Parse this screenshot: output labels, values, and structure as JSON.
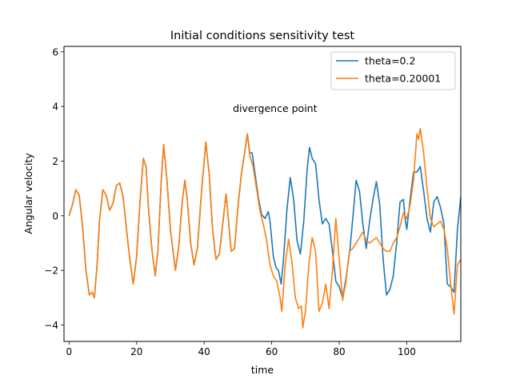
{
  "chart_data": {
    "type": "line",
    "title": "Initial conditions sensitivity test",
    "xlabel": "time",
    "ylabel": "Angular velocity",
    "xlim": [
      -1.5,
      116
    ],
    "ylim": [
      -4.6,
      6.2
    ],
    "xticks": [
      0,
      20,
      40,
      60,
      80,
      100
    ],
    "yticks": [
      -4,
      -2,
      0,
      2,
      4,
      6
    ],
    "xtick_labels": [
      "0",
      "20",
      "40",
      "60",
      "80",
      "100"
    ],
    "ytick_labels": [
      "−4",
      "−2",
      "0",
      "2",
      "4",
      "6"
    ],
    "grid": false,
    "legend_position": "top-right",
    "annotation": {
      "text": "divergence point",
      "x": 61,
      "y": 3.8
    },
    "series": [
      {
        "name": "theta=0.2",
        "color": "#1f77b4",
        "points": [
          [
            0,
            0
          ],
          [
            1,
            0.4
          ],
          [
            2,
            0.95
          ],
          [
            3,
            0.75
          ],
          [
            4,
            -0.4
          ],
          [
            5,
            -2.0
          ],
          [
            6,
            -2.9
          ],
          [
            6.8,
            -2.8
          ],
          [
            7.5,
            -3.0
          ],
          [
            8.3,
            -1.8
          ],
          [
            9,
            -0.2
          ],
          [
            10,
            0.95
          ],
          [
            11,
            0.75
          ],
          [
            12,
            0.2
          ],
          [
            13,
            0.45
          ],
          [
            14,
            1.1
          ],
          [
            15,
            1.2
          ],
          [
            16,
            0.7
          ],
          [
            17,
            -0.5
          ],
          [
            18,
            -1.6
          ],
          [
            19,
            -2.5
          ],
          [
            20,
            -1.5
          ],
          [
            21,
            0.5
          ],
          [
            22,
            2.1
          ],
          [
            22.8,
            1.8
          ],
          [
            23.5,
            0.3
          ],
          [
            24.5,
            -1.2
          ],
          [
            25.5,
            -2.2
          ],
          [
            26.3,
            -1.3
          ],
          [
            27.3,
            1.3
          ],
          [
            28,
            2.6
          ],
          [
            29,
            1.3
          ],
          [
            30,
            -0.5
          ],
          [
            31.5,
            -2.0
          ],
          [
            32.5,
            -1.1
          ],
          [
            33.5,
            0.5
          ],
          [
            34.3,
            1.3
          ],
          [
            35,
            0.6
          ],
          [
            36,
            -1.0
          ],
          [
            37,
            -1.8
          ],
          [
            38,
            -1.2
          ],
          [
            39.3,
            1.0
          ],
          [
            40.5,
            2.7
          ],
          [
            41.5,
            1.5
          ],
          [
            42.5,
            -0.5
          ],
          [
            43.5,
            -1.6
          ],
          [
            44.5,
            -1.4
          ],
          [
            45.5,
            -0.3
          ],
          [
            46.5,
            0.8
          ],
          [
            47.3,
            -0.3
          ],
          [
            48,
            -1.3
          ],
          [
            49,
            -1.2
          ],
          [
            50,
            0.3
          ],
          [
            51,
            1.5
          ],
          [
            52,
            2.3
          ],
          [
            52.8,
            3.0
          ],
          [
            53.5,
            2.3
          ],
          [
            54.2,
            2.3
          ],
          [
            55,
            1.6
          ],
          [
            56,
            0.7
          ],
          [
            57,
            0.05
          ],
          [
            58,
            -0.1
          ],
          [
            59,
            0.15
          ],
          [
            59.5,
            -0.2
          ],
          [
            60.5,
            -1.5
          ],
          [
            61.3,
            -1.9
          ],
          [
            62,
            -2.0
          ],
          [
            62.8,
            -2.5
          ],
          [
            63.5,
            -1.6
          ],
          [
            64.5,
            0.2
          ],
          [
            65.5,
            1.4
          ],
          [
            66.5,
            0.6
          ],
          [
            67.5,
            -0.9
          ],
          [
            68.5,
            -1.4
          ],
          [
            69.5,
            -0.2
          ],
          [
            70.5,
            1.7
          ],
          [
            71.2,
            2.5
          ],
          [
            72,
            2.1
          ],
          [
            73,
            1.9
          ],
          [
            74,
            0.6
          ],
          [
            75,
            -0.3
          ],
          [
            76,
            -0.1
          ],
          [
            77,
            -0.3
          ],
          [
            78,
            -1.3
          ],
          [
            79,
            -2.4
          ],
          [
            80,
            -2.6
          ],
          [
            81,
            -3.0
          ],
          [
            82,
            -2.3
          ],
          [
            83.2,
            -1.2
          ],
          [
            84.3,
            0.3
          ],
          [
            85,
            1.3
          ],
          [
            86,
            0.9
          ],
          [
            87,
            -0.3
          ],
          [
            88,
            -1.2
          ],
          [
            89,
            -0.2
          ],
          [
            90,
            0.6
          ],
          [
            91,
            1.25
          ],
          [
            92,
            0.4
          ],
          [
            93,
            -1.6
          ],
          [
            94,
            -2.9
          ],
          [
            95,
            -2.7
          ],
          [
            96,
            -2.2
          ],
          [
            97,
            -1.0
          ],
          [
            98,
            0.5
          ],
          [
            99,
            0.6
          ],
          [
            99.5,
            -0.1
          ],
          [
            100,
            -0.5
          ],
          [
            101,
            0.6
          ],
          [
            102,
            1.6
          ],
          [
            103,
            1.6
          ],
          [
            104,
            1.8
          ],
          [
            105,
            0.9
          ],
          [
            106,
            -0.1
          ],
          [
            107,
            -0.6
          ],
          [
            108,
            0.5
          ],
          [
            109,
            0.7
          ],
          [
            110,
            0.3
          ],
          [
            111,
            -0.3
          ],
          [
            112,
            -2.5
          ],
          [
            113,
            -2.6
          ],
          [
            114,
            -2.8
          ],
          [
            115,
            -0.5
          ],
          [
            116,
            0.7
          ]
        ]
      },
      {
        "name": "theta=0.20001",
        "color": "#ff7f0e",
        "points": [
          [
            0,
            0
          ],
          [
            1,
            0.4
          ],
          [
            2,
            0.95
          ],
          [
            3,
            0.75
          ],
          [
            4,
            -0.4
          ],
          [
            5,
            -2.0
          ],
          [
            6,
            -2.9
          ],
          [
            6.8,
            -2.8
          ],
          [
            7.5,
            -3.0
          ],
          [
            8.3,
            -1.8
          ],
          [
            9,
            -0.2
          ],
          [
            10,
            0.95
          ],
          [
            11,
            0.75
          ],
          [
            12,
            0.2
          ],
          [
            13,
            0.45
          ],
          [
            14,
            1.1
          ],
          [
            15,
            1.2
          ],
          [
            16,
            0.7
          ],
          [
            17,
            -0.5
          ],
          [
            18,
            -1.6
          ],
          [
            19,
            -2.5
          ],
          [
            20,
            -1.5
          ],
          [
            21,
            0.5
          ],
          [
            22,
            2.1
          ],
          [
            22.8,
            1.8
          ],
          [
            23.5,
            0.3
          ],
          [
            24.5,
            -1.2
          ],
          [
            25.5,
            -2.2
          ],
          [
            26.3,
            -1.3
          ],
          [
            27.3,
            1.3
          ],
          [
            28,
            2.6
          ],
          [
            29,
            1.3
          ],
          [
            30,
            -0.5
          ],
          [
            31.5,
            -2.0
          ],
          [
            32.5,
            -1.1
          ],
          [
            33.5,
            0.5
          ],
          [
            34.3,
            1.3
          ],
          [
            35,
            0.6
          ],
          [
            36,
            -1.0
          ],
          [
            37,
            -1.8
          ],
          [
            38,
            -1.2
          ],
          [
            39.3,
            1.0
          ],
          [
            40.5,
            2.7
          ],
          [
            41.5,
            1.5
          ],
          [
            42.5,
            -0.5
          ],
          [
            43.5,
            -1.6
          ],
          [
            44.5,
            -1.4
          ],
          [
            45.5,
            -0.3
          ],
          [
            46.5,
            0.8
          ],
          [
            47.3,
            -0.3
          ],
          [
            48,
            -1.3
          ],
          [
            49,
            -1.2
          ],
          [
            50,
            0.3
          ],
          [
            51,
            1.5
          ],
          [
            52,
            2.3
          ],
          [
            52.8,
            3.0
          ],
          [
            53.5,
            2.2
          ],
          [
            54.5,
            1.8
          ],
          [
            55.5,
            1.0
          ],
          [
            56.5,
            0.2
          ],
          [
            57.5,
            -0.3
          ],
          [
            58.5,
            -0.9
          ],
          [
            59.5,
            -1.8
          ],
          [
            60.5,
            -2.2
          ],
          [
            61.5,
            -2.4
          ],
          [
            62.5,
            -3.0
          ],
          [
            63,
            -3.5
          ],
          [
            64,
            -1.8
          ],
          [
            65,
            -0.85
          ],
          [
            66,
            -1.7
          ],
          [
            67,
            -3.0
          ],
          [
            68,
            -3.4
          ],
          [
            68.8,
            -3.3
          ],
          [
            69.2,
            -4.1
          ],
          [
            70,
            -3.5
          ],
          [
            71,
            -1.8
          ],
          [
            72,
            -0.8
          ],
          [
            73,
            -1.3
          ],
          [
            74,
            -3.5
          ],
          [
            75,
            -3.2
          ],
          [
            76,
            -2.5
          ],
          [
            77,
            -3.4
          ],
          [
            78,
            -2.0
          ],
          [
            79,
            -0.1
          ],
          [
            80,
            -1.6
          ],
          [
            81,
            -3.1
          ],
          [
            82,
            -2.4
          ],
          [
            83,
            -1.3
          ],
          [
            84,
            -1.2
          ],
          [
            85,
            -1.0
          ],
          [
            86,
            -0.8
          ],
          [
            87,
            -0.6
          ],
          [
            88,
            -0.9
          ],
          [
            89,
            -1.0
          ],
          [
            90,
            -0.9
          ],
          [
            91,
            -0.8
          ],
          [
            92,
            -1.0
          ],
          [
            93,
            -1.2
          ],
          [
            94,
            -1.3
          ],
          [
            95,
            -1.3
          ],
          [
            96,
            -1.0
          ],
          [
            97,
            -0.8
          ],
          [
            98,
            -0.4
          ],
          [
            99,
            0.1
          ],
          [
            100,
            -0.1
          ],
          [
            101,
            0.4
          ],
          [
            102,
            1.3
          ],
          [
            103,
            3.0
          ],
          [
            103.5,
            2.8
          ],
          [
            104,
            3.2
          ],
          [
            105,
            2.3
          ],
          [
            106,
            1.0
          ],
          [
            107,
            -0.1
          ],
          [
            108,
            -0.4
          ],
          [
            109,
            -0.3
          ],
          [
            110,
            -0.2
          ],
          [
            111,
            -0.5
          ],
          [
            112,
            -1.2
          ],
          [
            113,
            -2.5
          ],
          [
            114,
            -3.6
          ],
          [
            115,
            -1.8
          ],
          [
            116,
            -1.6
          ]
        ]
      }
    ]
  }
}
